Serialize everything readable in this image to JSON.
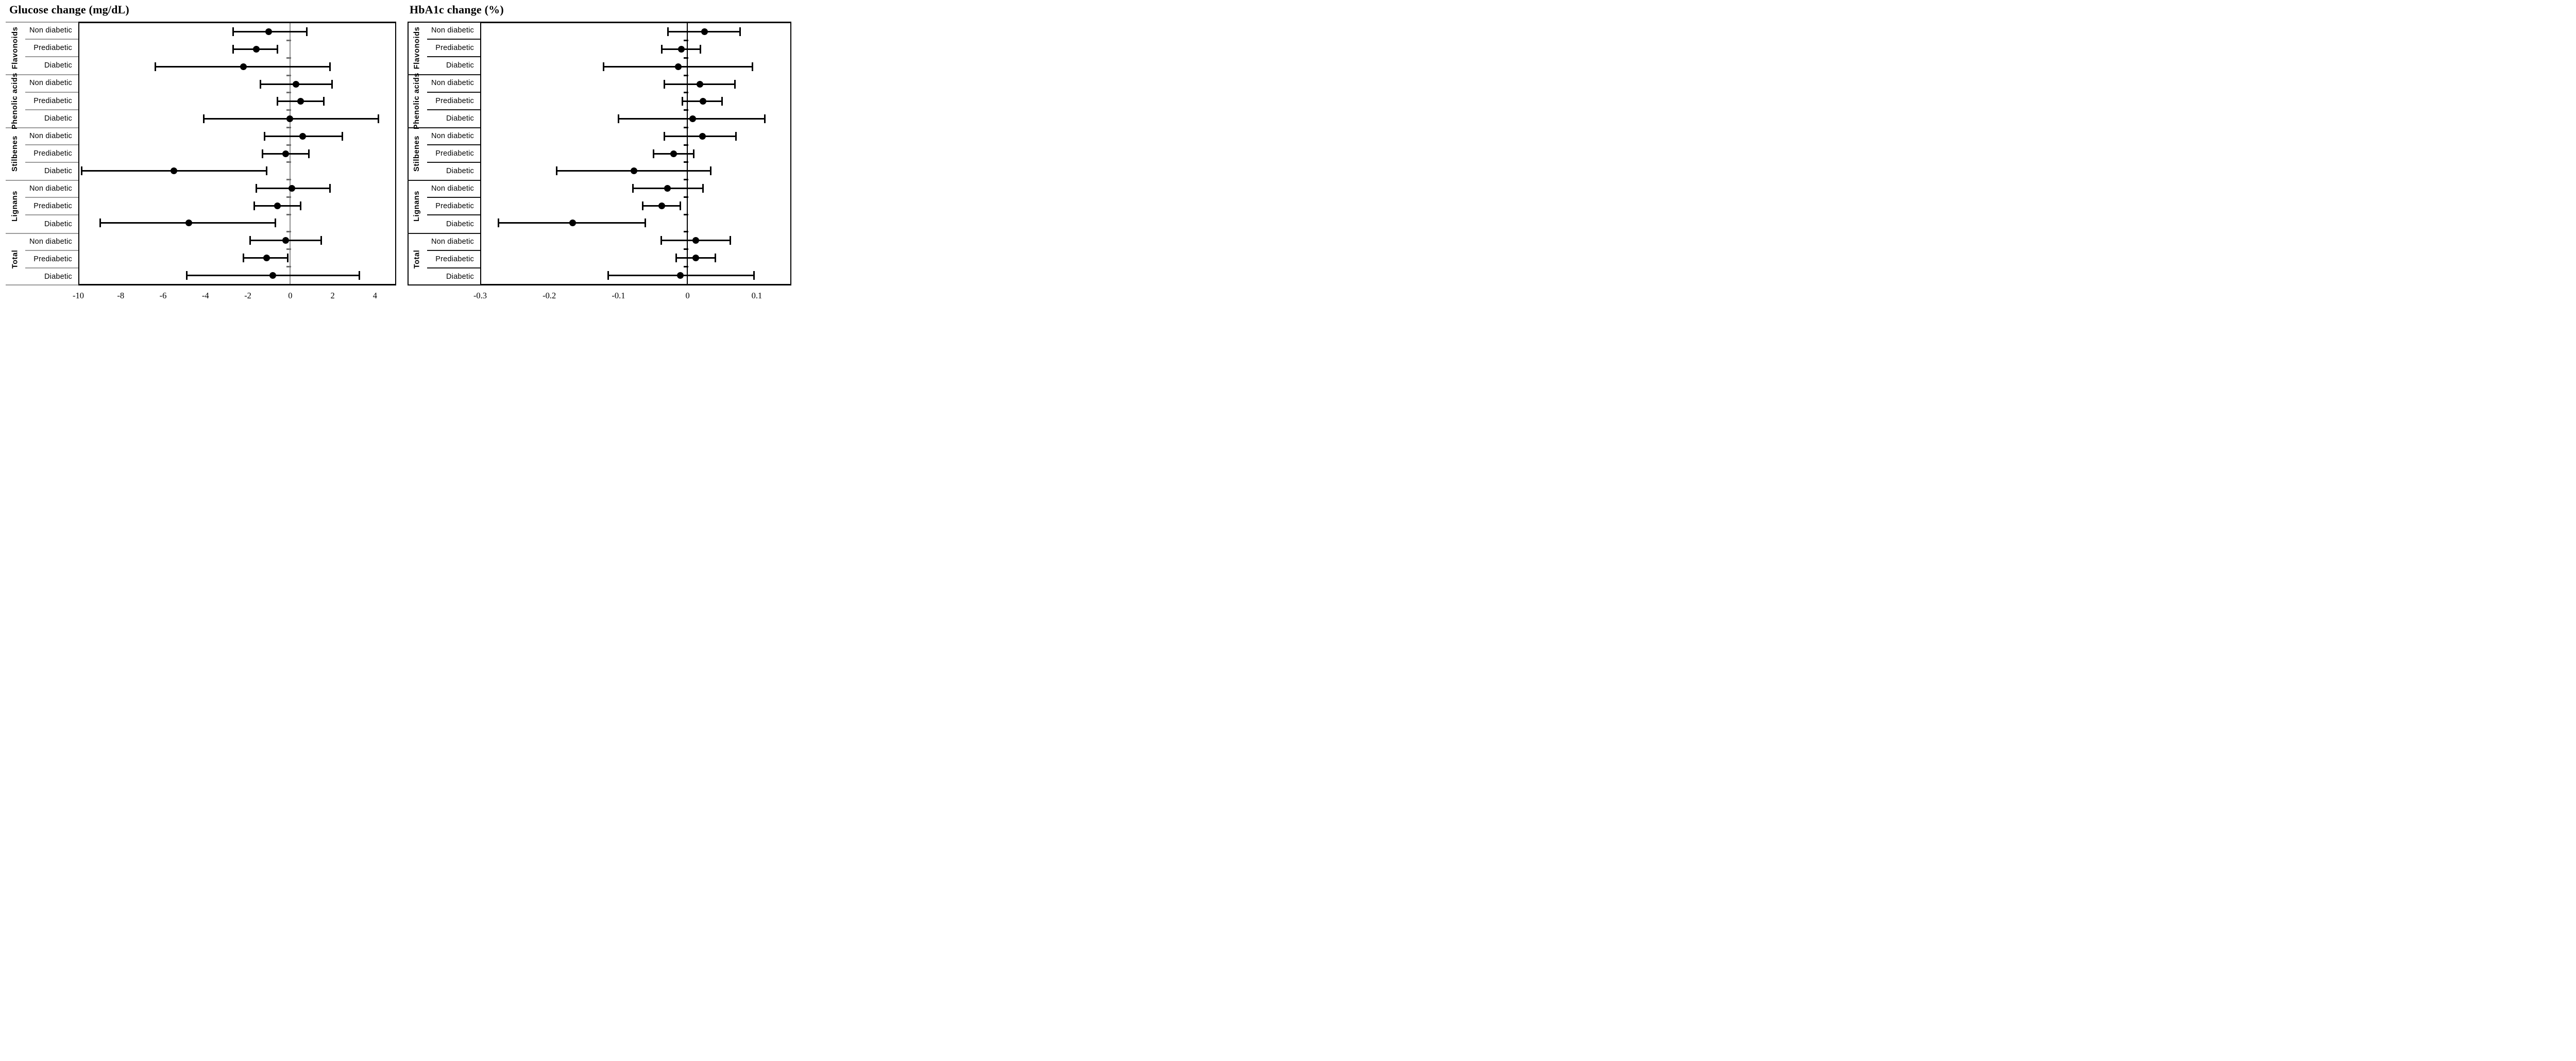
{
  "figure": {
    "background": "#ffffff",
    "ink_color": "#000000"
  },
  "chart_data": [
    {
      "type": "forest",
      "title": "Glucose change (mg/dL)",
      "xlabel": "",
      "unit": "mg/dL",
      "xlim": [
        -10,
        5
      ],
      "ticks": [
        {
          "v": -10,
          "label": "-10"
        },
        {
          "v": -8,
          "label": "-8"
        },
        {
          "v": -6,
          "label": "-6"
        },
        {
          "v": -4,
          "label": "-4"
        },
        {
          "v": -2,
          "label": "-2"
        },
        {
          "v": 0,
          "label": "0"
        },
        {
          "v": 2,
          "label": "2"
        },
        {
          "v": 4,
          "label": "4"
        }
      ],
      "zero_reference": 0,
      "style": {
        "separator_color": "#9b9b9b",
        "label_frame_color": "#9b9b9b",
        "zero_line_color": "#8f8f8f",
        "boundary_tick_color": "#6e6e6e"
      },
      "groups": [
        {
          "name": "Flavonoids",
          "rows": [
            {
              "label": "Non diabetic",
              "mean": -1.0,
              "lo": -2.7,
              "hi": 0.8
            },
            {
              "label": "Prediabetic",
              "mean": -1.6,
              "lo": -2.7,
              "hi": -0.6
            },
            {
              "label": "Diabetic",
              "mean": -2.2,
              "lo": -6.4,
              "hi": 1.9
            }
          ]
        },
        {
          "name": "Phenolic acids",
          "rows": [
            {
              "label": "Non diabetic",
              "mean": 0.3,
              "lo": -1.4,
              "hi": 2.0
            },
            {
              "label": "Prediabetic",
              "mean": 0.5,
              "lo": -0.6,
              "hi": 1.6
            },
            {
              "label": "Diabetic",
              "mean": 0.0,
              "lo": -4.1,
              "hi": 4.2
            }
          ]
        },
        {
          "name": "Stilbenes",
          "rows": [
            {
              "label": "Non diabetic",
              "mean": 0.6,
              "lo": -1.2,
              "hi": 2.5
            },
            {
              "label": "Prediabetic",
              "mean": -0.2,
              "lo": -1.3,
              "hi": 0.9
            },
            {
              "label": "Diabetic",
              "mean": -5.5,
              "lo": -9.9,
              "hi": -1.1
            }
          ]
        },
        {
          "name": "Lignans",
          "rows": [
            {
              "label": "Non diabetic",
              "mean": 0.1,
              "lo": -1.6,
              "hi": 1.9
            },
            {
              "label": "Prediabetic",
              "mean": -0.6,
              "lo": -1.7,
              "hi": 0.5
            },
            {
              "label": "Diabetic",
              "mean": -4.8,
              "lo": -9.0,
              "hi": -0.7
            }
          ]
        },
        {
          "name": "Total",
          "rows": [
            {
              "label": "Non diabetic",
              "mean": -0.2,
              "lo": -1.9,
              "hi": 1.5
            },
            {
              "label": "Prediabetic",
              "mean": -1.1,
              "lo": -2.2,
              "hi": -0.1
            },
            {
              "label": "Diabetic",
              "mean": -0.8,
              "lo": -4.9,
              "hi": 3.3
            }
          ]
        }
      ]
    },
    {
      "type": "forest",
      "title": "HbA1c change (%)",
      "xlabel": "",
      "unit": "%",
      "xlim": [
        -0.3,
        0.15
      ],
      "ticks": [
        {
          "v": -0.3,
          "label": "-0.3"
        },
        {
          "v": -0.2,
          "label": "-0.2"
        },
        {
          "v": -0.1,
          "label": "-0.1"
        },
        {
          "v": 0,
          "label": "0"
        },
        {
          "v": 0.1,
          "label": "0.1"
        }
      ],
      "zero_reference": 0,
      "style": {
        "separator_color": "#161616",
        "label_frame_color": "#000000",
        "zero_line_color": "#000000",
        "boundary_tick_color": "#000000"
      },
      "groups": [
        {
          "name": "Flavonoids",
          "rows": [
            {
              "label": "Non diabetic",
              "mean": 0.025,
              "lo": -0.028,
              "hi": 0.077
            },
            {
              "label": "Prediabetic",
              "mean": -0.009,
              "lo": -0.037,
              "hi": 0.019
            },
            {
              "label": "Diabetic",
              "mean": -0.013,
              "lo": -0.122,
              "hi": 0.095
            }
          ]
        },
        {
          "name": "Phenolic acids",
          "rows": [
            {
              "label": "Non diabetic",
              "mean": 0.018,
              "lo": -0.033,
              "hi": 0.069
            },
            {
              "label": "Prediabetic",
              "mean": 0.023,
              "lo": -0.007,
              "hi": 0.051
            },
            {
              "label": "Diabetic",
              "mean": 0.008,
              "lo": -0.1,
              "hi": 0.113
            }
          ]
        },
        {
          "name": "Stilbenes",
          "rows": [
            {
              "label": "Non diabetic",
              "mean": 0.022,
              "lo": -0.033,
              "hi": 0.071
            },
            {
              "label": "Prediabetic",
              "mean": -0.02,
              "lo": -0.049,
              "hi": 0.009
            },
            {
              "label": "Diabetic",
              "mean": -0.078,
              "lo": -0.19,
              "hi": 0.034
            }
          ]
        },
        {
          "name": "Lignans",
          "rows": [
            {
              "label": "Non diabetic",
              "mean": -0.029,
              "lo": -0.079,
              "hi": 0.023
            },
            {
              "label": "Prediabetic",
              "mean": -0.037,
              "lo": -0.065,
              "hi": -0.01
            },
            {
              "label": "Diabetic",
              "mean": -0.167,
              "lo": -0.275,
              "hi": -0.061
            }
          ]
        },
        {
          "name": "Total",
          "rows": [
            {
              "label": "Non diabetic",
              "mean": 0.012,
              "lo": -0.038,
              "hi": 0.063
            },
            {
              "label": "Prediabetic",
              "mean": 0.012,
              "lo": -0.016,
              "hi": 0.041
            },
            {
              "label": "Diabetic",
              "mean": -0.01,
              "lo": -0.115,
              "hi": 0.097
            }
          ]
        }
      ]
    }
  ]
}
